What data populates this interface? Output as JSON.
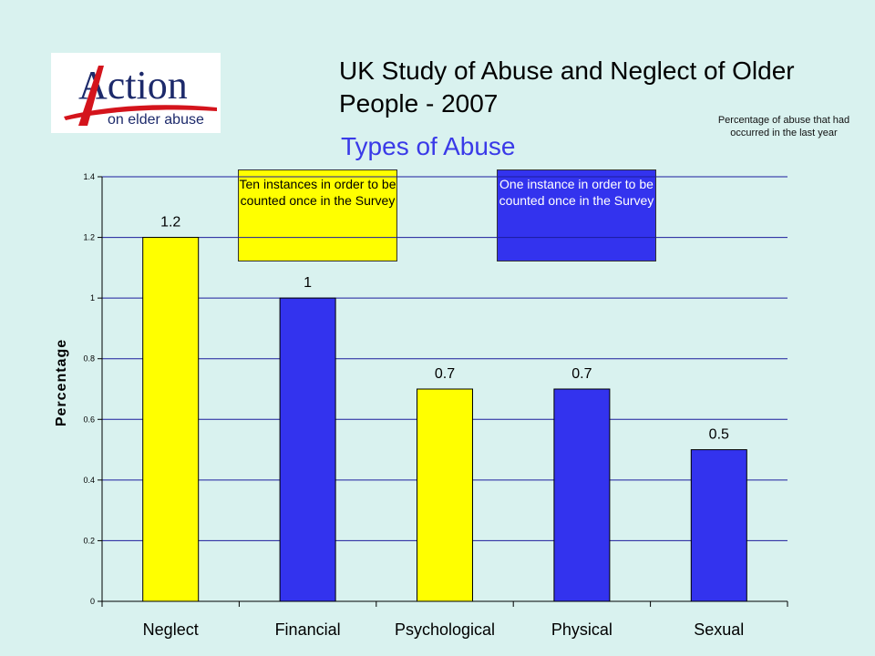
{
  "logo": {
    "brand": "Action",
    "tagline": "on elder abuse"
  },
  "title": "UK Study of Abuse and Neglect of Older People - 2007",
  "subtitle": "Types of Abuse",
  "note": "Percentage of abuse that had occurred in the last year",
  "callouts": [
    {
      "text": "Ten instances in order to be counted once in the Survey",
      "color": "#ffff00"
    },
    {
      "text": "One instance in order to be counted once in the Survey",
      "color": "#3333ee"
    }
  ],
  "colors": {
    "background": "#d9f2ef",
    "yellow": "#ffff00",
    "blue": "#3333ee",
    "logo_red": "#d4141c",
    "logo_navy": "#1d2a6b"
  },
  "chart_data": {
    "type": "bar",
    "title": "",
    "xlabel": "",
    "ylabel": "Percentage",
    "categories": [
      "Neglect",
      "Financial",
      "Psychological",
      "Physical",
      "Sexual"
    ],
    "values": [
      1.2,
      1,
      0.7,
      0.7,
      0.5
    ],
    "value_labels": [
      "1.2",
      "1",
      "0.7",
      "0.7",
      "0.5"
    ],
    "bar_colors": [
      "#ffff00",
      "#3333ee",
      "#ffff00",
      "#3333ee",
      "#3333ee"
    ],
    "ylim": [
      0,
      1.4
    ],
    "yticks": [
      "0",
      "0.2",
      "0.4",
      "0.6",
      "0.8",
      "1",
      "1.2",
      "1.4"
    ],
    "grid": true,
    "legend": "none"
  }
}
